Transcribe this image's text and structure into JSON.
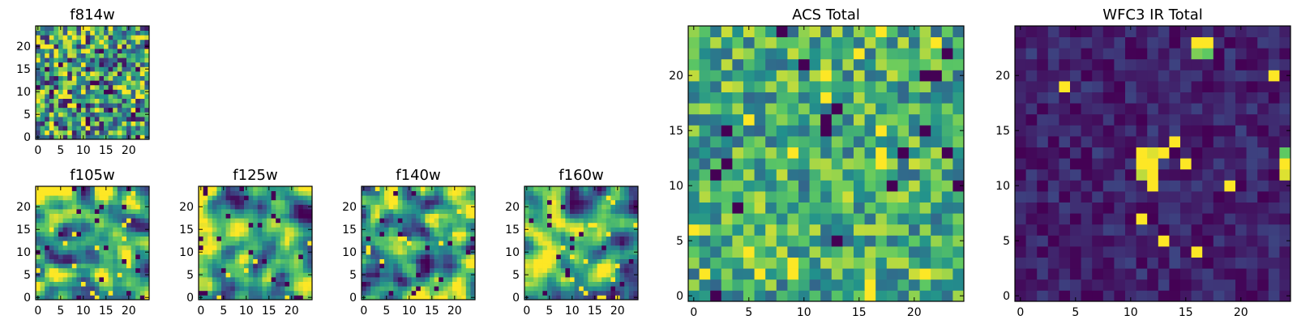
{
  "figure": {
    "colormap": "viridis",
    "colormap_stops": [
      "#440154",
      "#3b528b",
      "#21918c",
      "#5ec962",
      "#fde725"
    ]
  },
  "chart_data": [
    {
      "id": "f814w",
      "type": "heatmap",
      "title": "f814w",
      "grid_size": 25,
      "seed": 11,
      "smooth": 0,
      "bias": 0.55,
      "spread": 0.28,
      "xticks": [
        0,
        5,
        10,
        15,
        20
      ],
      "yticks": [
        0,
        5,
        10,
        15,
        20
      ],
      "xlim": [
        0,
        24
      ],
      "ylim": [
        0,
        24
      ]
    },
    {
      "id": "f105w",
      "type": "heatmap",
      "title": "f105w",
      "grid_size": 25,
      "seed": 23,
      "smooth": 2,
      "bias": 0.6,
      "spread": 0.25,
      "xticks": [
        0,
        5,
        10,
        15,
        20
      ],
      "yticks": [
        0,
        5,
        10,
        15,
        20
      ],
      "xlim": [
        0,
        24
      ],
      "ylim": [
        0,
        24
      ]
    },
    {
      "id": "f125w",
      "type": "heatmap",
      "title": "f125w",
      "grid_size": 25,
      "seed": 37,
      "smooth": 2,
      "bias": 0.6,
      "spread": 0.25,
      "xticks": [
        0,
        5,
        10,
        15,
        20
      ],
      "yticks": [
        0,
        5,
        10,
        15,
        20
      ],
      "xlim": [
        0,
        24
      ],
      "ylim": [
        0,
        24
      ]
    },
    {
      "id": "f140w",
      "type": "heatmap",
      "title": "f140w",
      "grid_size": 25,
      "seed": 41,
      "smooth": 2,
      "bias": 0.58,
      "spread": 0.26,
      "xticks": [
        0,
        5,
        10,
        15,
        20
      ],
      "yticks": [
        0,
        5,
        10,
        15,
        20
      ],
      "xlim": [
        0,
        24
      ],
      "ylim": [
        0,
        24
      ]
    },
    {
      "id": "f160w",
      "type": "heatmap",
      "title": "f160w",
      "grid_size": 25,
      "seed": 53,
      "smooth": 2,
      "bias": 0.58,
      "spread": 0.26,
      "xticks": [
        0,
        5,
        10,
        15,
        20
      ],
      "yticks": [
        0,
        5,
        10,
        15,
        20
      ],
      "xlim": [
        0,
        24
      ],
      "ylim": [
        0,
        24
      ]
    },
    {
      "id": "acs_total",
      "type": "heatmap",
      "title": "ACS Total",
      "grid_size": 25,
      "seed": 67,
      "smooth": 0,
      "bias": 0.62,
      "spread": 0.18,
      "xticks": [
        0,
        5,
        10,
        15,
        20
      ],
      "yticks": [
        0,
        5,
        10,
        15,
        20
      ],
      "xlim": [
        0,
        24
      ],
      "ylim": [
        0,
        24
      ]
    },
    {
      "id": "wfc3_ir_total",
      "type": "heatmap",
      "title": "WFC3 IR Total",
      "grid_size": 25,
      "seed": 79,
      "smooth": 0,
      "bias": 0.1,
      "spread": 0.06,
      "xticks": [
        0,
        5,
        10,
        15,
        20
      ],
      "yticks": [
        0,
        5,
        10,
        15,
        20
      ],
      "xlim": [
        0,
        24
      ],
      "ylim": [
        0,
        24
      ],
      "hotspots": [
        {
          "col": 16,
          "row": 23,
          "value": 1.0
        },
        {
          "col": 17,
          "row": 23,
          "value": 1.0
        },
        {
          "col": 16,
          "row": 22,
          "value": 0.8
        },
        {
          "col": 17,
          "row": 22,
          "value": 0.75
        },
        {
          "col": 11,
          "row": 13,
          "value": 1.0
        },
        {
          "col": 12,
          "row": 13,
          "value": 0.95
        },
        {
          "col": 11,
          "row": 12,
          "value": 1.0
        },
        {
          "col": 12,
          "row": 12,
          "value": 1.0
        },
        {
          "col": 11,
          "row": 11,
          "value": 0.9
        },
        {
          "col": 12,
          "row": 11,
          "value": 1.0
        },
        {
          "col": 12,
          "row": 10,
          "value": 1.0
        },
        {
          "col": 24,
          "row": 13,
          "value": 0.75
        },
        {
          "col": 24,
          "row": 12,
          "value": 1.0
        },
        {
          "col": 24,
          "row": 11,
          "value": 0.95
        }
      ]
    }
  ]
}
